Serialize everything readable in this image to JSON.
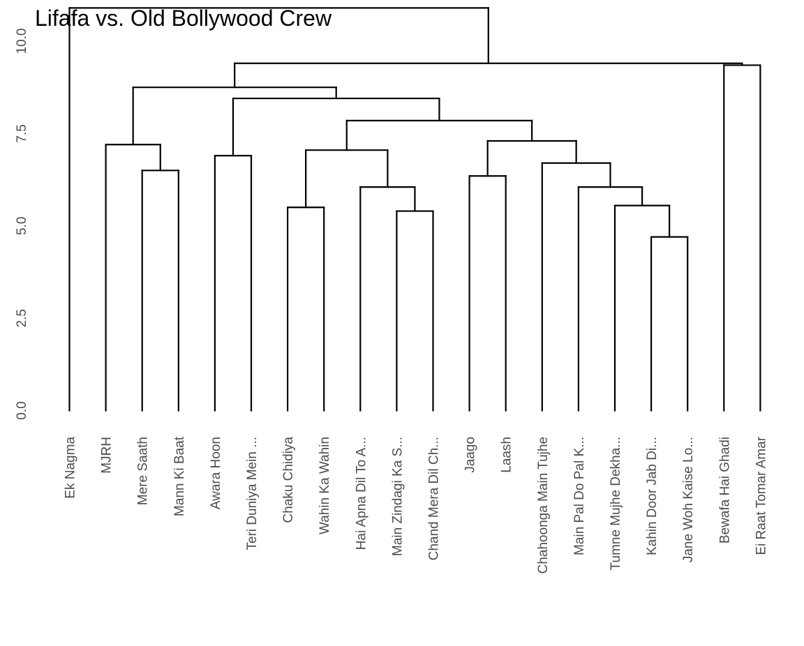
{
  "chart_data": {
    "type": "dendrogram",
    "title": "Lifafa vs. Old Bollywood Crew",
    "xlabel": "",
    "ylabel": "",
    "ylim": [
      0,
      11
    ],
    "y_ticks": [
      "0.0",
      "2.5",
      "5.0",
      "7.5",
      "10.0"
    ],
    "y_tick_values": [
      0,
      2.5,
      5,
      7.5,
      10
    ],
    "grid": false,
    "leaves": [
      "Ek Nagma",
      "MJRH",
      "Mere Saath",
      "Mann Ki Baat",
      "Awara Hoon",
      "Teri Duniya Mein ...",
      "Chaku Chidiya",
      "Wahin Ka Wahin",
      "Hai Apna Dil To A...",
      "Main Zindagi Ka S...",
      "Chand Mera Dil Ch...",
      "Jaago",
      "Laash",
      "Chahoonga Main Tujhe",
      "Main Pal Do Pal K...",
      "Tumne Mujhe Dekha...",
      "Kahin Door Jab Di...",
      "Jane Woh Kaise Lo...",
      "Bewafa Hai Ghadi",
      "Ei Raat Tomar Amar"
    ],
    "merges": [
      {
        "left": "L16",
        "right": "L17",
        "height": 4.7
      },
      {
        "left": "L15",
        "right": "N0",
        "height": 5.55
      },
      {
        "left": "L9",
        "right": "L10",
        "height": 5.4
      },
      {
        "left": "L6",
        "right": "L7",
        "height": 5.5
      },
      {
        "left": "L14",
        "right": "N1",
        "height": 6.05
      },
      {
        "left": "L8",
        "right": "N2",
        "height": 6.05
      },
      {
        "left": "L11",
        "right": "L12",
        "height": 6.35
      },
      {
        "left": "L2",
        "right": "L3",
        "height": 6.5
      },
      {
        "left": "L13",
        "right": "N4",
        "height": 6.7
      },
      {
        "left": "L4",
        "right": "L5",
        "height": 6.9
      },
      {
        "left": "N3",
        "right": "N5",
        "height": 7.05
      },
      {
        "left": "L1",
        "right": "N7",
        "height": 7.2
      },
      {
        "left": "N6",
        "right": "N8",
        "height": 7.3
      },
      {
        "left": "N10",
        "right": "N12",
        "height": 7.85
      },
      {
        "left": "N9",
        "right": "N13",
        "height": 8.45
      },
      {
        "left": "N11",
        "right": "N14",
        "height": 8.75
      },
      {
        "left": "L18",
        "right": "L19",
        "height": 9.35
      },
      {
        "left": "N15",
        "right": "N16",
        "height": 9.4
      },
      {
        "left": "L0",
        "right": "N17",
        "height": 10.9
      }
    ]
  }
}
